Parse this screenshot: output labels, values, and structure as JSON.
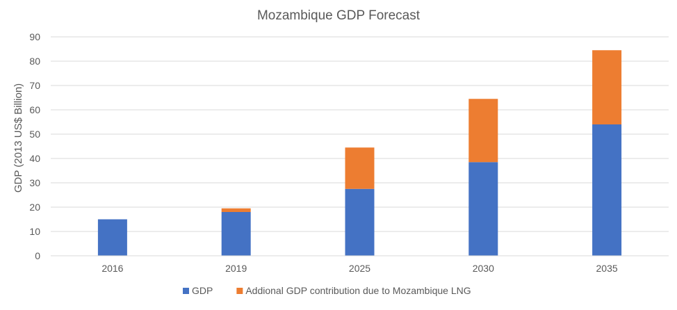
{
  "chart_data": {
    "type": "bar",
    "stacked": true,
    "title": "Mozambique GDP Forecast",
    "xlabel": "",
    "ylabel": "GDP (2013 US$ Billion)",
    "ylim": [
      0,
      90
    ],
    "yticks": [
      0,
      10,
      20,
      30,
      40,
      50,
      60,
      70,
      80,
      90
    ],
    "categories": [
      "2016",
      "2019",
      "2025",
      "2030",
      "2035"
    ],
    "series": [
      {
        "name": "GDP",
        "color": "#4472C4",
        "values": [
          15,
          18,
          27.5,
          38.5,
          54
        ]
      },
      {
        "name": "Addional GDP contribution due to Mozambique LNG",
        "color": "#ED7D31",
        "values": [
          0,
          1.5,
          17,
          26,
          30.5
        ]
      }
    ],
    "grid": true,
    "legend_position": "bottom"
  }
}
